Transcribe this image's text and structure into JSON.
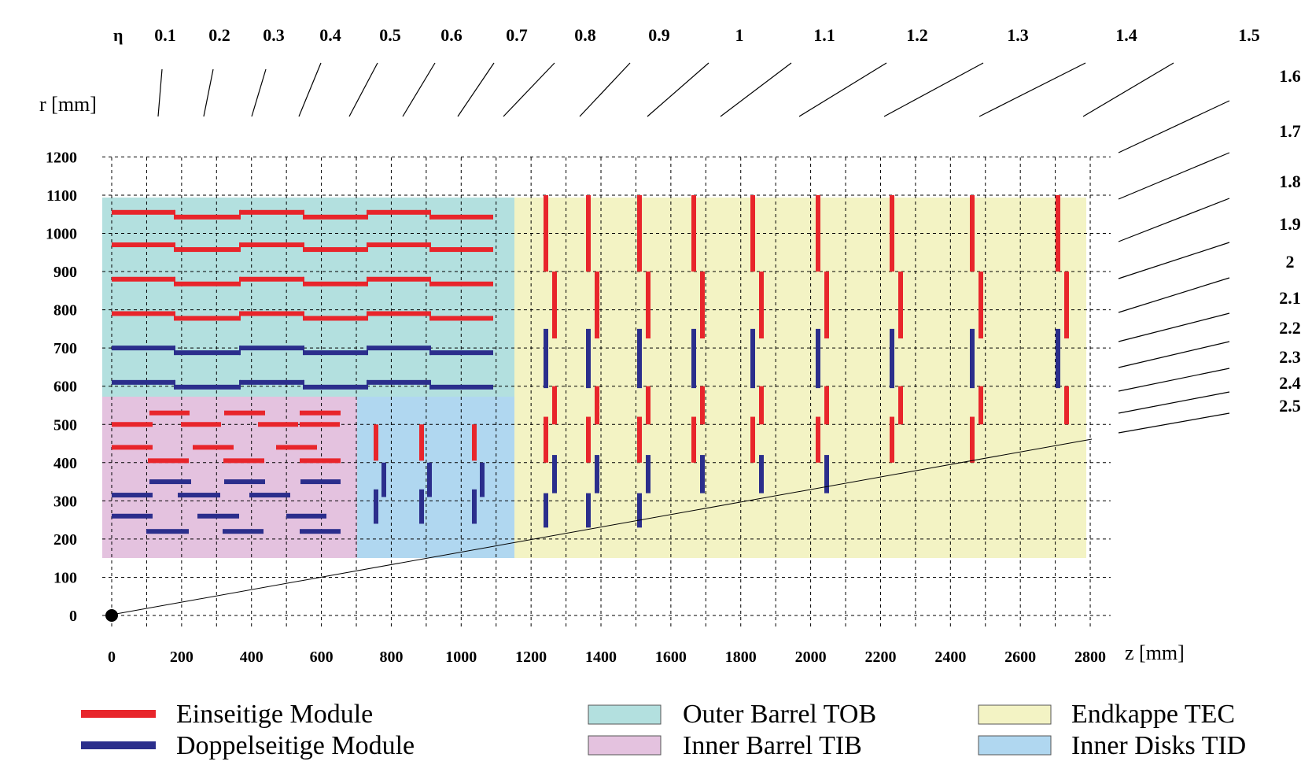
{
  "axes": {
    "r_label": "r [mm]",
    "z_label": "z [mm]",
    "eta_symbol": "η",
    "r_ticks": [
      "1200",
      "1100",
      "1000",
      "900",
      "800",
      "700",
      "600",
      "500",
      "400",
      "300",
      "200",
      "100",
      "0"
    ],
    "z_ticks": [
      "0",
      "200",
      "400",
      "600",
      "800",
      "1000",
      "1200",
      "1400",
      "1600",
      "1800",
      "2000",
      "2200",
      "2400",
      "2600",
      "2800"
    ],
    "eta_top": [
      "0.1",
      "0.2",
      "0.3",
      "0.4",
      "0.5",
      "0.6",
      "0.7",
      "0.8",
      "0.9",
      "1",
      "1.1",
      "1.2",
      "1.3",
      "1.4",
      "1.5"
    ],
    "eta_right": [
      "1.6",
      "1.7",
      "1.8",
      "1.9",
      "2",
      "2.1",
      "2.2",
      "2.3",
      "2.4",
      "2.5"
    ]
  },
  "colors": {
    "single_sided": "#e8252b",
    "double_sided": "#2b2e8c",
    "tob": "#b3e0df",
    "tib": "#e4c2df",
    "tec": "#f3f3c4",
    "tid": "#b0d7f0"
  },
  "legend": {
    "single_label": "Einseitige Module",
    "double_label": "Doppelseitige Module",
    "tob_label": "Outer Barrel   TOB",
    "tib_label": "Inner Barrel   TIB",
    "tec_label": "Endkappe   TEC",
    "tid_label": "Inner Disks  TID"
  }
}
